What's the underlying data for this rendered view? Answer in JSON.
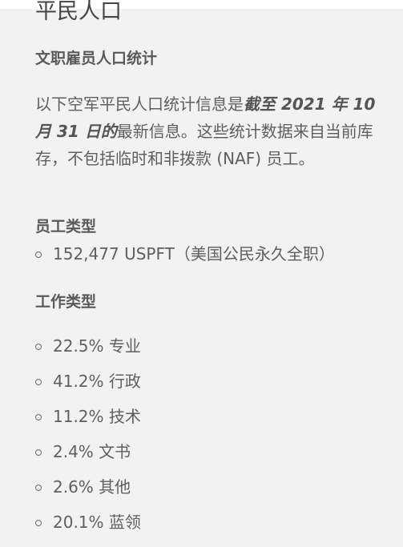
{
  "page": {
    "title": "平民人口"
  },
  "section_employees": {
    "heading": "文职雇员人口统计",
    "intro_prefix": "以下空军平民人口统计信息是",
    "intro_emphasis": "截至 2021 年 10 月 31 日的",
    "intro_suffix": "最新信息。这些统计数据来自当前库存，不包括临时和非拨款 (NAF) 员工。"
  },
  "employee_types": {
    "heading": "员工类型",
    "items": [
      {
        "label": "152,477 USPFT（美国公民永久全职）"
      }
    ]
  },
  "job_types": {
    "heading": "工作类型",
    "items": [
      {
        "label": "22.5% 专业"
      },
      {
        "label": "41.2% 行政"
      },
      {
        "label": "11.2% 技术"
      },
      {
        "label": "2.4% 文书"
      },
      {
        "label": "2.6% 其他"
      },
      {
        "label": "20.1% 蓝领"
      }
    ]
  }
}
